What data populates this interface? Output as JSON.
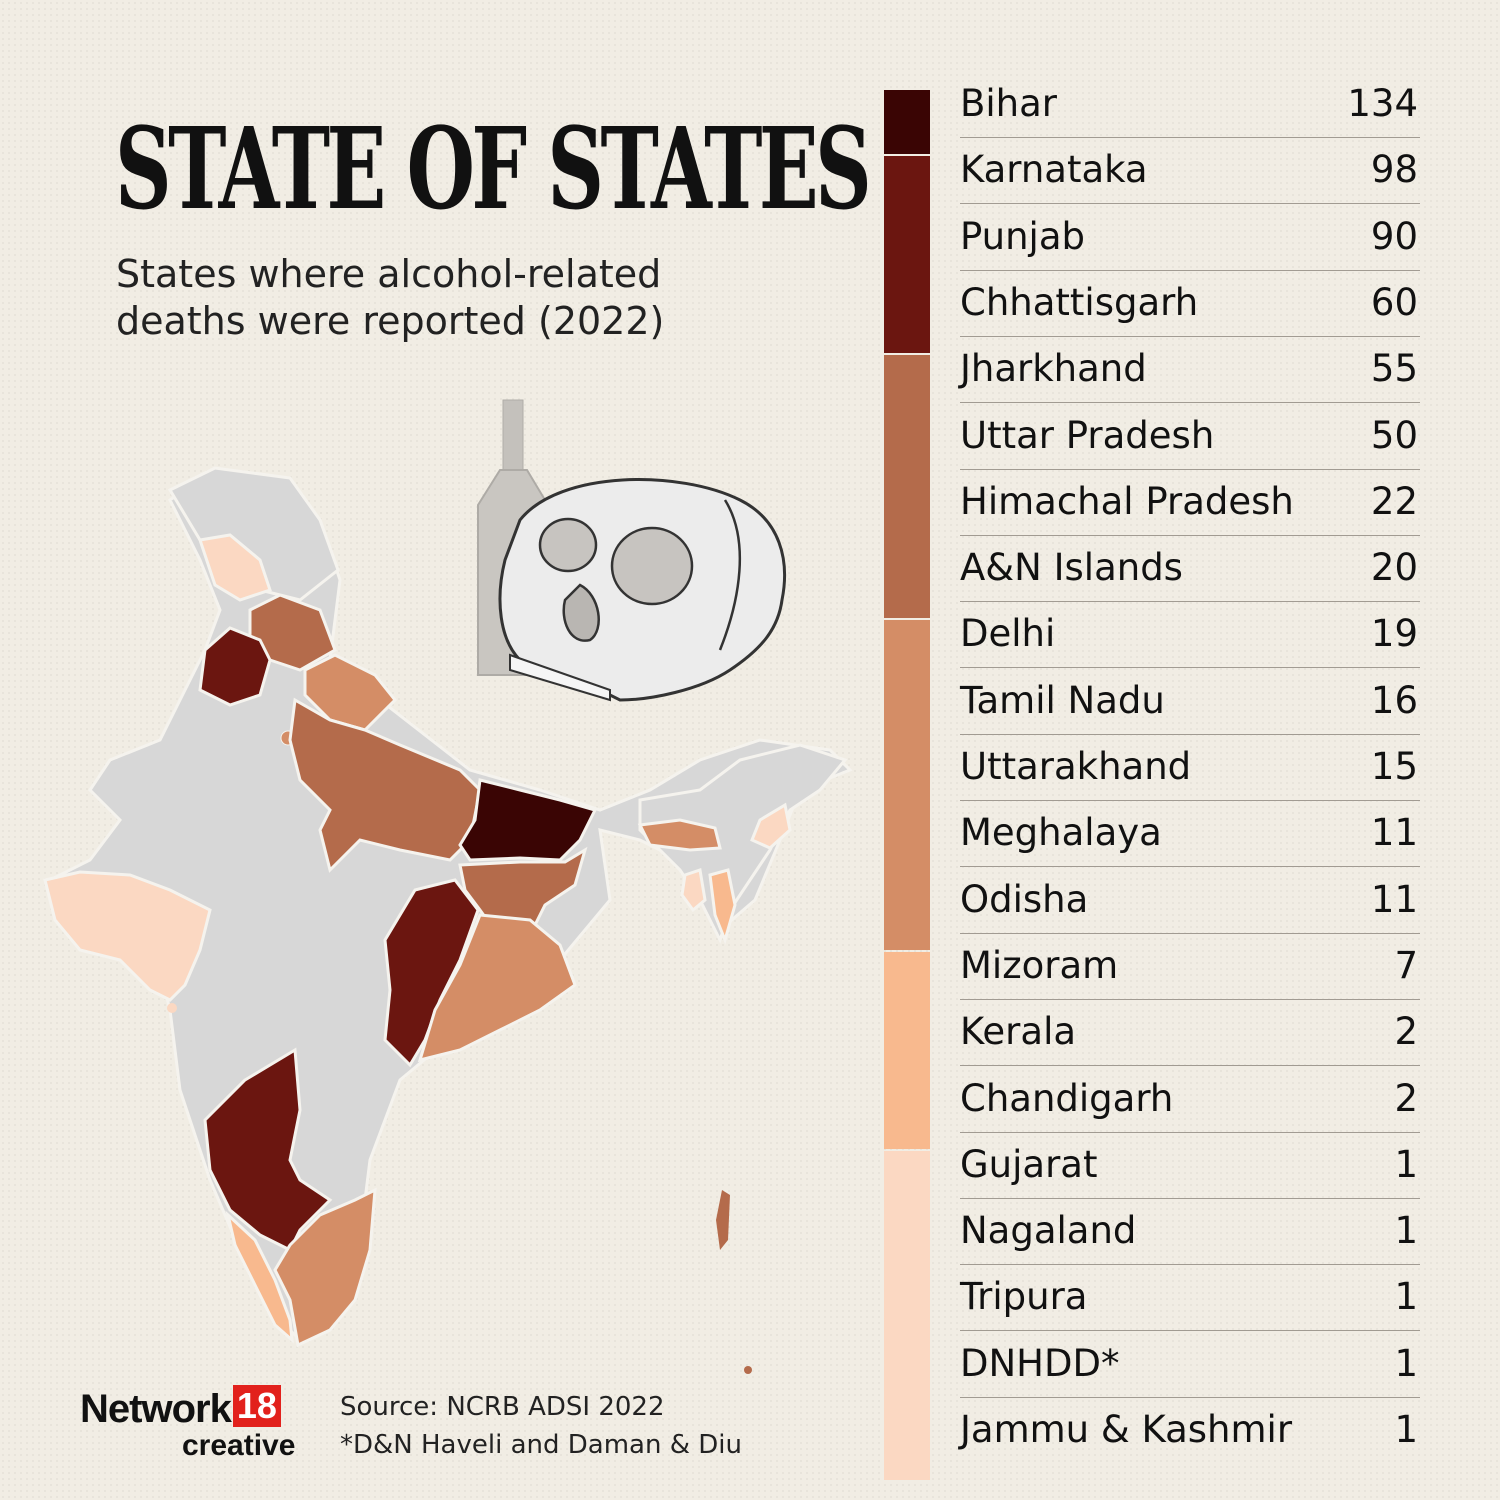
{
  "header": {
    "title": "STATE OF STATES",
    "subtitle": "States where alcohol-related deaths were reported (2022)"
  },
  "colors": {
    "tier1": "#3a0504",
    "tier2": "#6b1610",
    "tier3": "#b46b4b",
    "tier4": "#d48d66",
    "tier5": "#f8b98e",
    "tier6": "#fbd8c2",
    "no_data": "#d7d7d7",
    "skull": "#ececec",
    "bottle": "#c4c1bc"
  },
  "legend_bands": [
    {
      "tier": "tier1",
      "rows": 1
    },
    {
      "tier": "tier2",
      "rows": 3
    },
    {
      "tier": "tier3",
      "rows": 4
    },
    {
      "tier": "tier4",
      "rows": 5
    },
    {
      "tier": "tier5",
      "rows": 3
    },
    {
      "tier": "tier6",
      "rows": 5
    }
  ],
  "chart_data": {
    "type": "table",
    "title": "STATE OF STATES",
    "subtitle": "States where alcohol-related deaths were reported (2022)",
    "rows": [
      {
        "state": "Bihar",
        "value": 134
      },
      {
        "state": "Karnataka",
        "value": 98
      },
      {
        "state": "Punjab",
        "value": 90
      },
      {
        "state": "Chhattisgarh",
        "value": 60
      },
      {
        "state": "Jharkhand",
        "value": 55
      },
      {
        "state": "Uttar Pradesh",
        "value": 50
      },
      {
        "state": "Himachal Pradesh",
        "value": 22
      },
      {
        "state": "A&N Islands",
        "value": 20
      },
      {
        "state": "Delhi",
        "value": 19
      },
      {
        "state": "Tamil Nadu",
        "value": 16
      },
      {
        "state": "Uttarakhand",
        "value": 15
      },
      {
        "state": "Meghalaya",
        "value": 11
      },
      {
        "state": "Odisha",
        "value": 11
      },
      {
        "state": "Mizoram",
        "value": 7
      },
      {
        "state": "Kerala",
        "value": 2
      },
      {
        "state": "Chandigarh",
        "value": 2
      },
      {
        "state": "Gujarat",
        "value": 1
      },
      {
        "state": "Nagaland",
        "value": 1
      },
      {
        "state": "Tripura",
        "value": 1
      },
      {
        "state": "DNHDD*",
        "value": 1
      },
      {
        "state": "Jammu & Kashmir",
        "value": 1
      }
    ]
  },
  "footer": {
    "logo_network": "Network",
    "logo_number": "18",
    "logo_creative": "creative",
    "source": "Source: NCRB ADSI 2022",
    "footnote": "*D&N Haveli and Daman & Diu"
  }
}
